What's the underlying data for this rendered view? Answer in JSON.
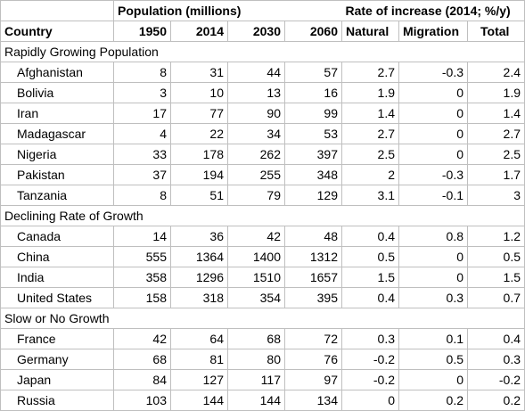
{
  "header": {
    "population_title": "Population (millions)",
    "rate_title": "Rate of increase (2014; %/y)",
    "columns": [
      "Country",
      "1950",
      "2014",
      "2030",
      "2060",
      "Natural",
      "Migration",
      "Total"
    ]
  },
  "groups": [
    {
      "label": "Rapidly Growing Population",
      "rows": [
        {
          "country": "Afghanistan",
          "p1950": "8",
          "p2014": "31",
          "p2030": "44",
          "p2060": "57",
          "natural": "2.7",
          "migration": "-0.3",
          "total": "2.4"
        },
        {
          "country": "Bolivia",
          "p1950": "3",
          "p2014": "10",
          "p2030": "13",
          "p2060": "16",
          "natural": "1.9",
          "migration": "0",
          "total": "1.9"
        },
        {
          "country": "Iran",
          "p1950": "17",
          "p2014": "77",
          "p2030": "90",
          "p2060": "99",
          "natural": "1.4",
          "migration": "0",
          "total": "1.4"
        },
        {
          "country": "Madagascar",
          "p1950": "4",
          "p2014": "22",
          "p2030": "34",
          "p2060": "53",
          "natural": "2.7",
          "migration": "0",
          "total": "2.7"
        },
        {
          "country": "Nigeria",
          "p1950": "33",
          "p2014": "178",
          "p2030": "262",
          "p2060": "397",
          "natural": "2.5",
          "migration": "0",
          "total": "2.5"
        },
        {
          "country": "Pakistan",
          "p1950": "37",
          "p2014": "194",
          "p2030": "255",
          "p2060": "348",
          "natural": "2",
          "migration": "-0.3",
          "total": "1.7"
        },
        {
          "country": "Tanzania",
          "p1950": "8",
          "p2014": "51",
          "p2030": "79",
          "p2060": "129",
          "natural": "3.1",
          "migration": "-0.1",
          "total": "3"
        }
      ]
    },
    {
      "label": "Declining Rate of Growth",
      "rows": [
        {
          "country": "Canada",
          "p1950": "14",
          "p2014": "36",
          "p2030": "42",
          "p2060": "48",
          "natural": "0.4",
          "migration": "0.8",
          "total": "1.2"
        },
        {
          "country": "China",
          "p1950": "555",
          "p2014": "1364",
          "p2030": "1400",
          "p2060": "1312",
          "natural": "0.5",
          "migration": "0",
          "total": "0.5"
        },
        {
          "country": "India",
          "p1950": "358",
          "p2014": "1296",
          "p2030": "1510",
          "p2060": "1657",
          "natural": "1.5",
          "migration": "0",
          "total": "1.5"
        },
        {
          "country": "United States",
          "p1950": "158",
          "p2014": "318",
          "p2030": "354",
          "p2060": "395",
          "natural": "0.4",
          "migration": "0.3",
          "total": "0.7"
        }
      ]
    },
    {
      "label": "Slow or No Growth",
      "rows": [
        {
          "country": "France",
          "p1950": "42",
          "p2014": "64",
          "p2030": "68",
          "p2060": "72",
          "natural": "0.3",
          "migration": "0.1",
          "total": "0.4"
        },
        {
          "country": "Germany",
          "p1950": "68",
          "p2014": "81",
          "p2030": "80",
          "p2060": "76",
          "natural": "-0.2",
          "migration": "0.5",
          "total": "0.3"
        },
        {
          "country": "Japan",
          "p1950": "84",
          "p2014": "127",
          "p2030": "117",
          "p2060": "97",
          "natural": "-0.2",
          "migration": "0",
          "total": "-0.2"
        },
        {
          "country": "Russia",
          "p1950": "103",
          "p2014": "144",
          "p2030": "144",
          "p2060": "134",
          "natural": "0",
          "migration": "0.2",
          "total": "0.2"
        }
      ]
    }
  ]
}
